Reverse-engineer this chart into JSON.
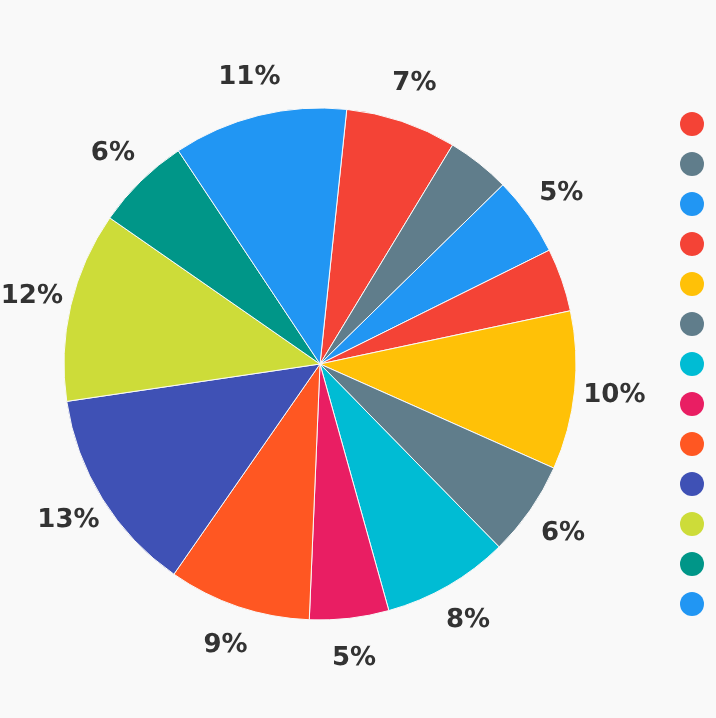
{
  "chart_data": {
    "type": "pie",
    "categories": [
      null,
      null,
      null,
      null,
      null,
      null,
      null,
      null,
      null,
      null,
      null,
      null,
      null
    ],
    "values": [
      7,
      4,
      5,
      4,
      10,
      6,
      8,
      5,
      9,
      13,
      12,
      6,
      11
    ],
    "colors": [
      "#f44336",
      "#607d8b",
      "#2196f3",
      "#f44336",
      "#ffc107",
      "#607d8b",
      "#00bcd4",
      "#e91e63",
      "#ff5722",
      "#3f51b5",
      "#cddc39",
      "#009688",
      "#2196f3"
    ],
    "value_labels": [
      "7%",
      null,
      "5%",
      null,
      "10%",
      "6%",
      "8%",
      "5%",
      "9%",
      "13%",
      "12%",
      "6%",
      "11%"
    ]
  }
}
